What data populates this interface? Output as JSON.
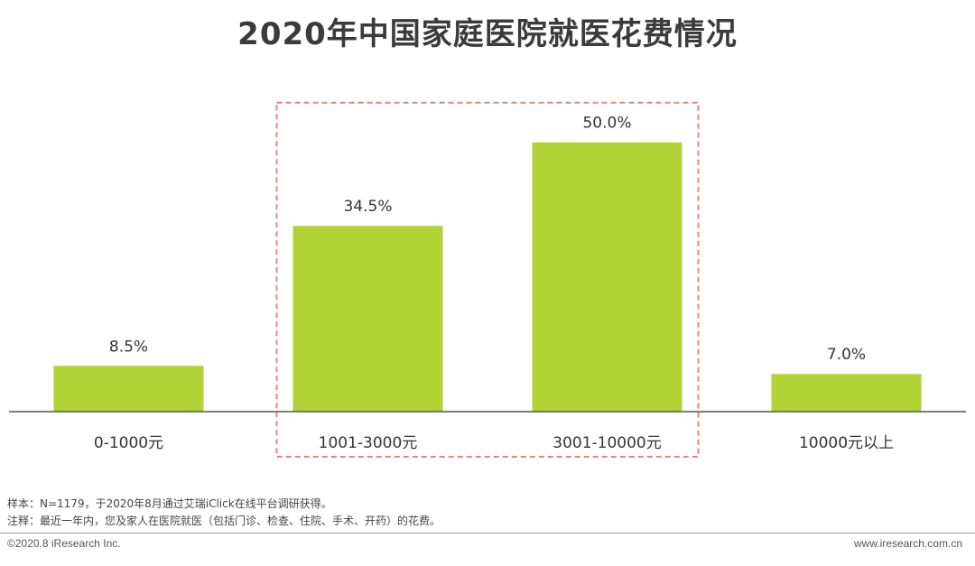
{
  "chart_data": {
    "type": "bar",
    "title": "2020年中国家庭医院就医花费情况",
    "categories": [
      "0-1000元",
      "1001-3000元",
      "3001-10000元",
      "10000元以上"
    ],
    "values": [
      8.5,
      34.5,
      50.0,
      7.0
    ],
    "data_labels": [
      "8.5%",
      "34.5%",
      "50.0%",
      "7.0%"
    ],
    "unit": "%",
    "ylim": [
      0,
      58
    ],
    "grid": false,
    "highlight": {
      "categories": [
        "1001-3000元",
        "3001-10000元"
      ],
      "style": "dashed-box"
    },
    "colors": {
      "bar": "#b2d235",
      "highlight_box": "#f08080",
      "axis": "#555555"
    }
  },
  "notes": {
    "sample": "样本：N=1179，于2020年8月通过艾瑞iClick在线平台调研获得。",
    "remark": "注释：最近一年内，您及家人在医院就医（包括门诊、检查、住院、手术、开药）的花费。"
  },
  "footer": {
    "copyright": "©2020.8 iResearch Inc.",
    "website": "www.iresearch.com.cn"
  }
}
